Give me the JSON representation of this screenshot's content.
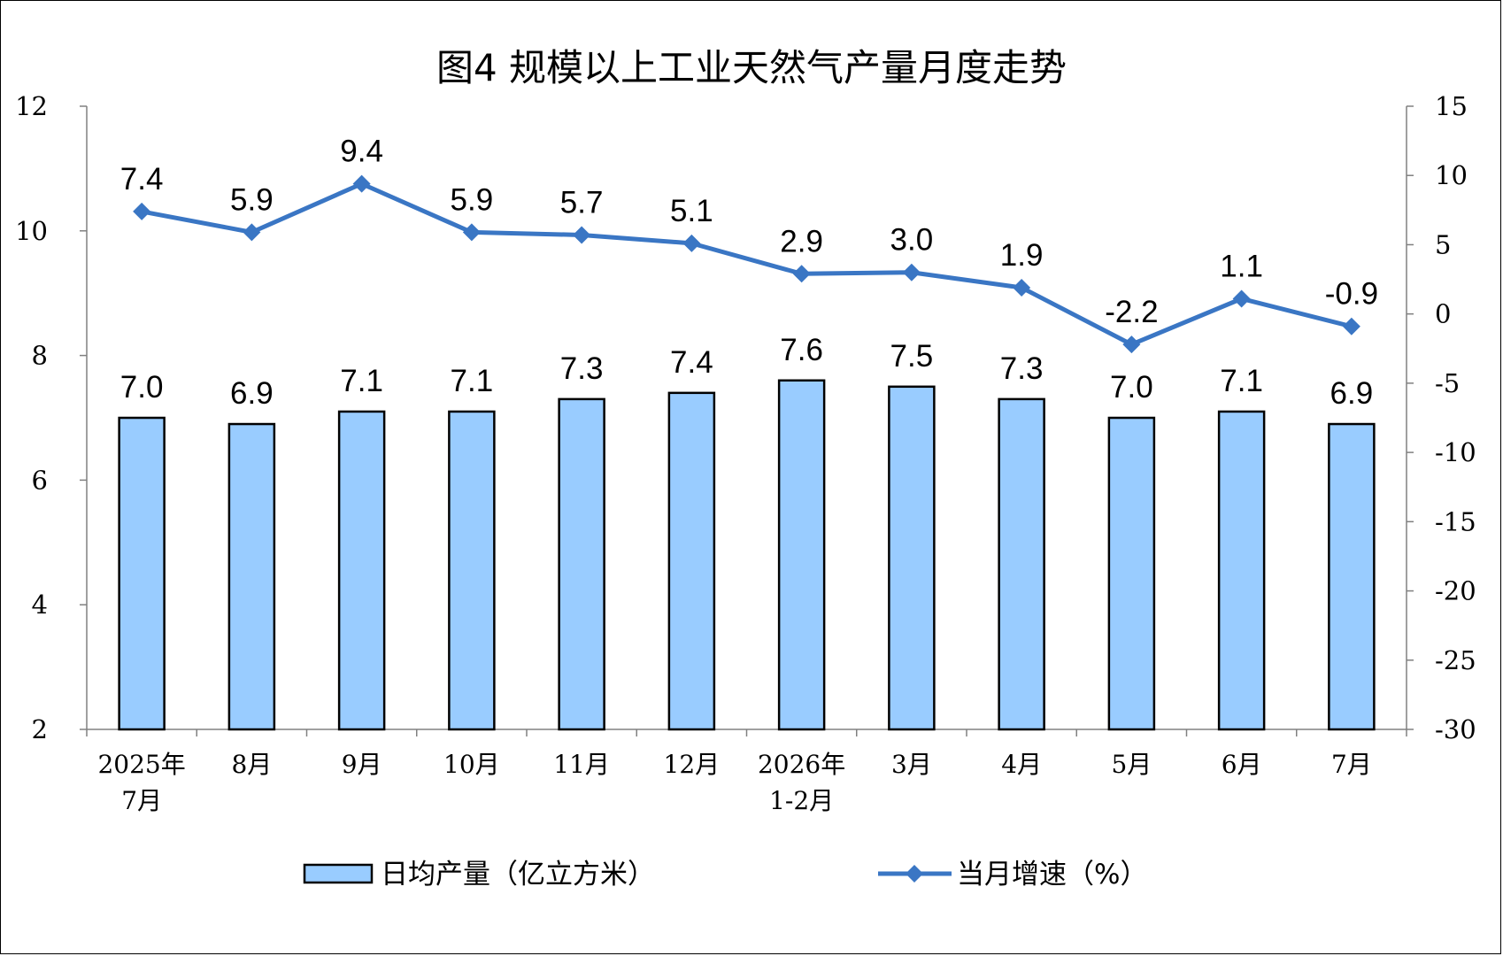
{
  "chart_data": {
    "type": "bar",
    "title": "图4  规模以上工业天然气产量月度走势",
    "categories": [
      [
        "2025年",
        "7月"
      ],
      [
        "8月"
      ],
      [
        "9月"
      ],
      [
        "10月"
      ],
      [
        "11月"
      ],
      [
        "12月"
      ],
      [
        "2026年",
        "1-2月"
      ],
      [
        "3月"
      ],
      [
        "4月"
      ],
      [
        "5月"
      ],
      [
        "6月"
      ],
      [
        "7月"
      ]
    ],
    "series": [
      {
        "name": "日均产量（亿立方米）",
        "type": "bar",
        "axis": "left",
        "color": "#99CCFF",
        "values": [
          7.0,
          6.9,
          7.1,
          7.1,
          7.3,
          7.4,
          7.6,
          7.5,
          7.3,
          7.0,
          7.1,
          6.9
        ]
      },
      {
        "name": "当月增速（%）",
        "type": "line",
        "axis": "right",
        "color": "#3A76C4",
        "marker": "diamond",
        "values": [
          7.4,
          5.9,
          9.4,
          5.9,
          5.7,
          5.1,
          2.9,
          3.0,
          1.9,
          -2.2,
          1.1,
          -0.9
        ]
      }
    ],
    "y_left": {
      "min": 2,
      "max": 12,
      "ticks": [
        2,
        4,
        6,
        8,
        10,
        12
      ]
    },
    "y_right": {
      "min": -30,
      "max": 15,
      "ticks": [
        -30,
        -25,
        -20,
        -15,
        -10,
        -5,
        0,
        5,
        10,
        15
      ]
    },
    "grid": false,
    "legend": "bottom"
  }
}
